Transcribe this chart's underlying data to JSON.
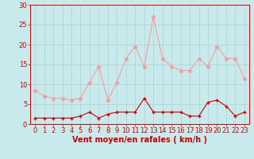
{
  "hours": [
    0,
    1,
    2,
    3,
    4,
    5,
    6,
    7,
    8,
    9,
    10,
    11,
    12,
    13,
    14,
    15,
    16,
    17,
    18,
    19,
    20,
    21,
    22,
    23
  ],
  "wind_avg": [
    1.5,
    1.5,
    1.5,
    1.5,
    1.5,
    2.0,
    3.0,
    1.5,
    2.5,
    3.0,
    3.0,
    3.0,
    6.5,
    3.0,
    3.0,
    3.0,
    3.0,
    2.0,
    2.0,
    5.5,
    6.0,
    4.5,
    2.0,
    3.0
  ],
  "wind_gust": [
    8.5,
    7.0,
    6.5,
    6.5,
    6.0,
    6.5,
    10.5,
    14.5,
    6.0,
    10.5,
    16.5,
    19.5,
    14.5,
    27.0,
    16.5,
    14.5,
    13.5,
    13.5,
    16.5,
    14.5,
    19.5,
    16.5,
    16.5,
    11.5
  ],
  "avg_color": "#cc0000",
  "gust_color": "#f0a0a0",
  "bg_color": "#c8eaec",
  "grid_color": "#b0d0d4",
  "axis_color": "#cc0000",
  "tick_color": "#cc0000",
  "xlabel": "Vent moyen/en rafales ( km/h )",
  "ylim": [
    0,
    30
  ],
  "yticks": [
    0,
    5,
    10,
    15,
    20,
    25,
    30
  ],
  "label_fontsize": 7,
  "tick_fontsize": 6
}
